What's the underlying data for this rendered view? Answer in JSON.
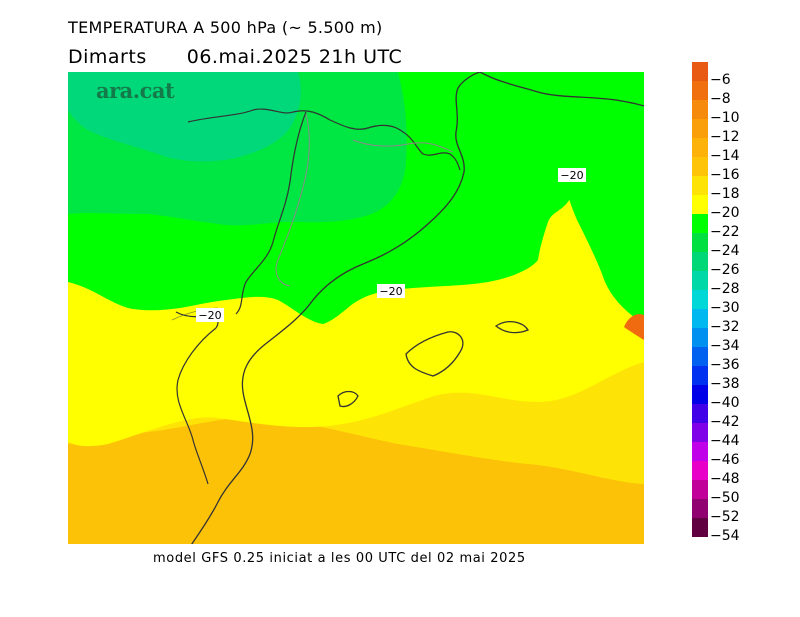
{
  "header": {
    "title": "TEMPERATURA A 500 hPa (~ 5.500 m)",
    "day": "Dimarts",
    "datetime": "06.mai.2025 21h UTC"
  },
  "logo": "ara.cat",
  "footer": "model GFS 0.25 iniciat a les 00 UTC del 02 mai 2025",
  "contour_labels": [
    "-20",
    "-20",
    "-20"
  ],
  "legend": {
    "labels": [
      "-6",
      "-8",
      "-10",
      "-12",
      "-14",
      "-16",
      "-18",
      "-20",
      "-22",
      "-24",
      "-26",
      "-28",
      "-30",
      "-32",
      "-34",
      "-36",
      "-38",
      "-40",
      "-42",
      "-44",
      "-46",
      "-48",
      "-50",
      "-52",
      "-54"
    ],
    "colors": [
      "#e85a12",
      "#f07010",
      "#f68a0c",
      "#fa9e0a",
      "#fcb208",
      "#fec408",
      "#fee406",
      "#ffff00",
      "#00ff00",
      "#00e040",
      "#00d878",
      "#00d8a8",
      "#00d8d8",
      "#00b8f0",
      "#0090f0",
      "#0060f0",
      "#0030f0",
      "#0000e8",
      "#4000e8",
      "#8000e8",
      "#c000e8",
      "#e800c8",
      "#c00098",
      "#900070",
      "#600040"
    ]
  },
  "fields": {
    "colors": {
      "orange": "#fcc208",
      "gold": "#fee406",
      "yellow": "#ffff00",
      "green": "#00ff00",
      "green_dark": "#00e642",
      "teal": "#00d87a",
      "orange_red": "#f06a10"
    }
  }
}
